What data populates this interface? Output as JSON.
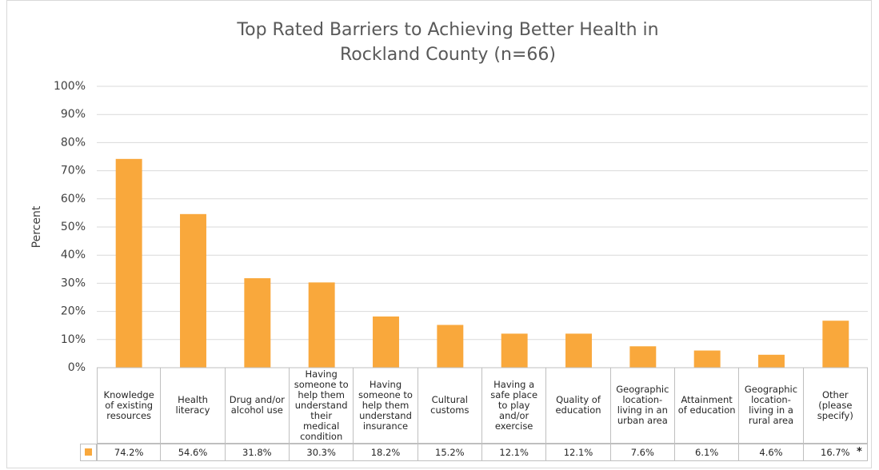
{
  "chart_data": {
    "type": "bar",
    "title": "Top Rated Barriers to Achieving Better Health in Rockland County (n=66)",
    "y_label": "Percent",
    "categories": [
      "Knowledge of existing resources",
      "Health literacy",
      "Drug and/or alcohol use",
      "Having someone to help them understand their medical condition",
      "Having someone to help them understand insurance",
      "Cultural customs",
      "Having a safe place to play and/or exercise",
      "Quality of education",
      "Geographic location- living in an urban area",
      "Attainment of education",
      "Geographic location- living in a rural area",
      "Other (please specify)"
    ],
    "values": [
      74.2,
      54.6,
      31.8,
      30.3,
      18.2,
      15.2,
      12.1,
      12.1,
      7.6,
      6.1,
      4.6,
      16.7
    ],
    "value_labels": [
      "74.2%",
      "54.6%",
      "31.8%",
      "30.3%",
      "18.2%",
      "15.2%",
      "12.1%",
      "12.1%",
      "7.6%",
      "6.1%",
      "4.6%",
      "16.7%"
    ],
    "annotation": "*",
    "color": "#f9a83c",
    "ylim": [
      0,
      100
    ],
    "yticks": [
      {
        "value": 0,
        "label": "0%"
      },
      {
        "value": 10,
        "label": "10%"
      },
      {
        "value": 20,
        "label": "20%"
      },
      {
        "value": 30,
        "label": "30%"
      },
      {
        "value": 40,
        "label": "40%"
      },
      {
        "value": 50,
        "label": "50%"
      },
      {
        "value": 60,
        "label": "60%"
      },
      {
        "value": 70,
        "label": "70%"
      },
      {
        "value": 80,
        "label": "80%"
      },
      {
        "value": 90,
        "label": "90%"
      },
      {
        "value": 100,
        "label": "100%"
      }
    ],
    "grid": true
  }
}
